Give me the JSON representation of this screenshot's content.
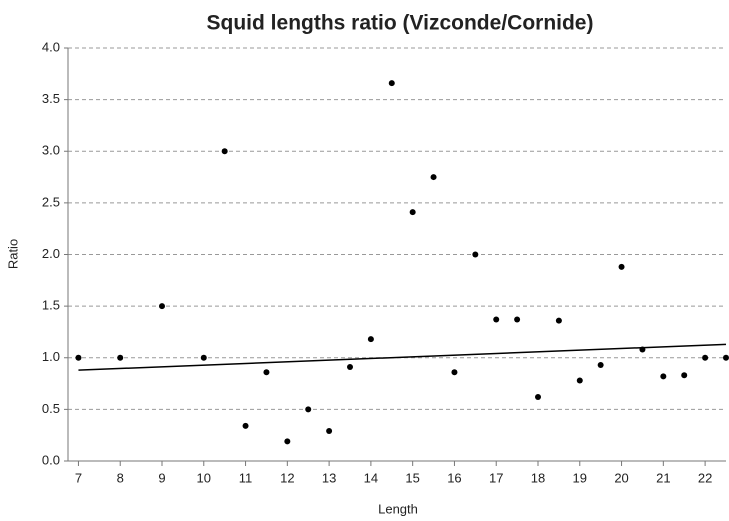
{
  "chart_data": {
    "type": "scatter",
    "title": "Squid lengths ratio (Vizconde/Cornide)",
    "x_label": "Length",
    "y_label": "Ratio",
    "x": [
      7,
      8,
      9,
      10,
      10.5,
      11,
      11.5,
      12,
      12.5,
      13,
      13.5,
      14,
      14.5,
      15,
      15.5,
      16,
      16.5,
      17,
      17.5,
      18,
      18.5,
      19,
      19.5,
      20,
      20.5,
      21,
      21.5,
      22,
      22.5
    ],
    "values": [
      1.0,
      1.0,
      1.5,
      1.0,
      3.0,
      0.34,
      0.86,
      0.19,
      0.5,
      0.29,
      0.91,
      1.18,
      3.66,
      2.41,
      2.75,
      0.86,
      2.0,
      1.37,
      1.37,
      0.62,
      1.36,
      0.78,
      0.93,
      1.88,
      1.08,
      0.82,
      0.83,
      1.0,
      1.0
    ],
    "color": "#000000",
    "trendline": {
      "x": [
        7,
        22.5
      ],
      "values": [
        0.88,
        1.13
      ],
      "color": "#000000"
    },
    "xlim": [
      6.75,
      22.5
    ],
    "xticks": [
      7,
      8,
      9,
      10,
      11,
      12,
      13,
      14,
      15,
      16,
      17,
      18,
      19,
      20,
      21,
      22
    ],
    "ylim": [
      0,
      4
    ],
    "yticks": [
      {
        "value": 0,
        "label": "0.0"
      },
      {
        "value": 0.5,
        "label": "0.5"
      },
      {
        "value": 1,
        "label": "1.0"
      },
      {
        "value": 1.5,
        "label": "1.5"
      },
      {
        "value": 2,
        "label": "2.0"
      },
      {
        "value": 2.5,
        "label": "2.5"
      },
      {
        "value": 3,
        "label": "3.0"
      },
      {
        "value": 3.5,
        "label": "3.5"
      },
      {
        "value": 4,
        "label": "4.0"
      }
    ],
    "grid": true
  }
}
